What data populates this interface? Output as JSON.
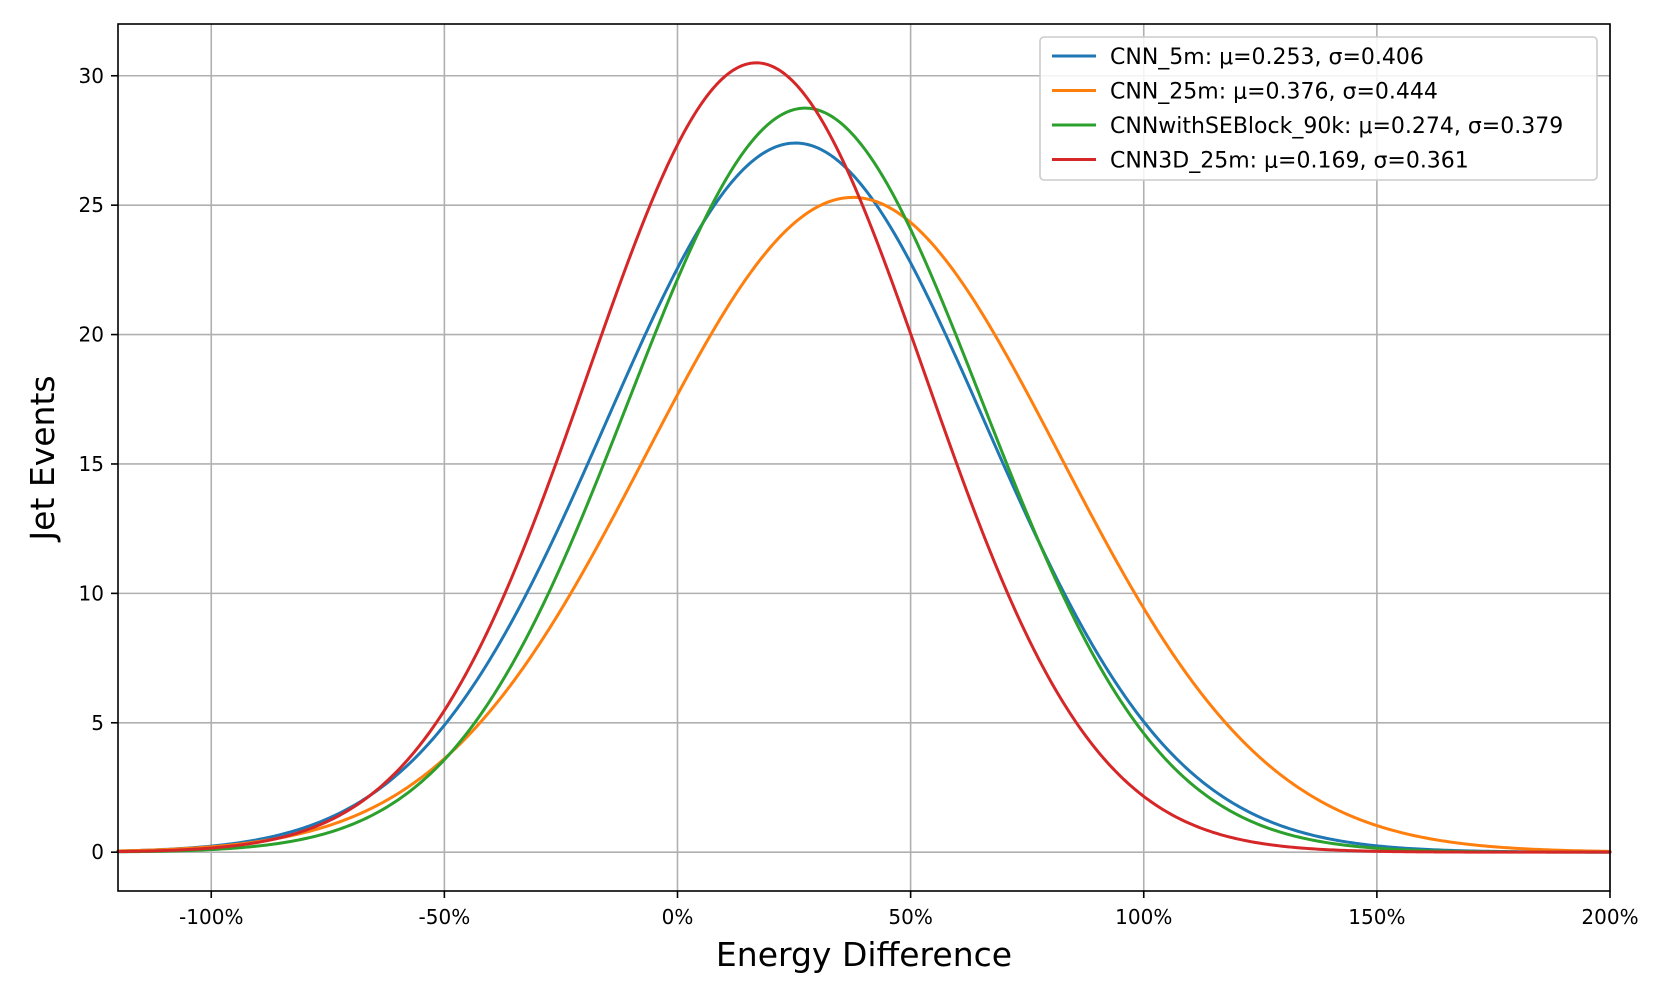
{
  "chart_data": {
    "type": "line",
    "title": "",
    "xlabel": "Energy Difference",
    "ylabel": "Jet Events",
    "xlim": [
      -1.2,
      2.0
    ],
    "ylim": [
      -1.5,
      32.0
    ],
    "x_ticks": [
      {
        "value": -1.0,
        "label": "-100%"
      },
      {
        "value": -0.5,
        "label": "-50%"
      },
      {
        "value": 0.0,
        "label": "0%"
      },
      {
        "value": 0.5,
        "label": "50%"
      },
      {
        "value": 1.0,
        "label": "100%"
      },
      {
        "value": 1.5,
        "label": "150%"
      },
      {
        "value": 2.0,
        "label": "200%"
      }
    ],
    "y_ticks": [
      {
        "value": 0,
        "label": "0"
      },
      {
        "value": 5,
        "label": "5"
      },
      {
        "value": 10,
        "label": "10"
      },
      {
        "value": 15,
        "label": "15"
      },
      {
        "value": 20,
        "label": "20"
      },
      {
        "value": 25,
        "label": "25"
      },
      {
        "value": 30,
        "label": "30"
      }
    ],
    "grid": true,
    "legend_position": "top-right",
    "series": [
      {
        "name": "CNN_5m",
        "label": "CNN_5m: μ=0.253, σ=0.406",
        "mu": 0.253,
        "sigma": 0.406,
        "peak": 27.4,
        "color": "#1f77b4"
      },
      {
        "name": "CNN_25m",
        "label": "CNN_25m: μ=0.376, σ=0.444",
        "mu": 0.376,
        "sigma": 0.444,
        "peak": 25.3,
        "color": "#ff7f0e"
      },
      {
        "name": "CNNwithSEBlock_90k",
        "label": "CNNwithSEBlock_90k: μ=0.274, σ=0.379",
        "mu": 0.274,
        "sigma": 0.379,
        "peak": 28.75,
        "color": "#2ca02c"
      },
      {
        "name": "CNN3D_25m",
        "label": "CNN3D_25m: μ=0.169, σ=0.361",
        "mu": 0.169,
        "sigma": 0.361,
        "peak": 30.5,
        "color": "#d62728"
      }
    ]
  }
}
